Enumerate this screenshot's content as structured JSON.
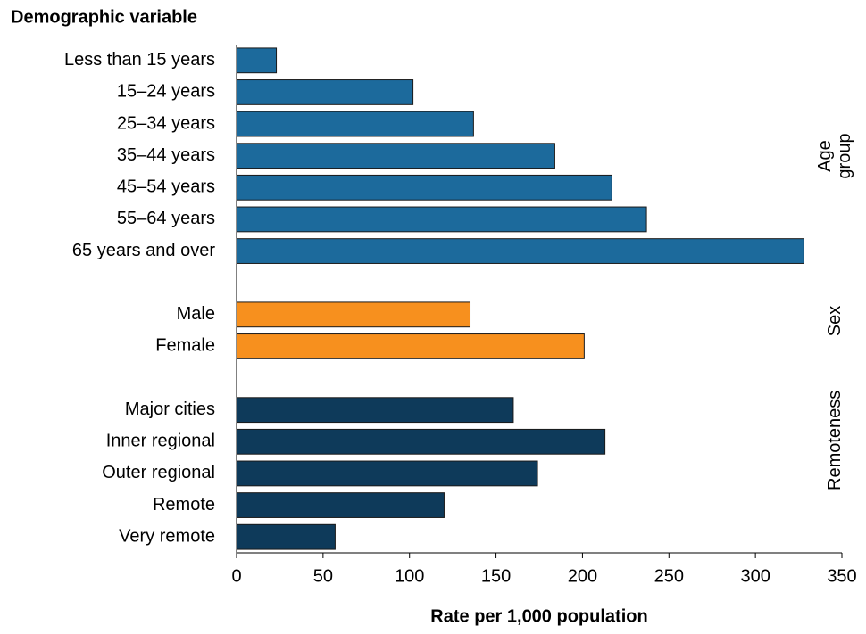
{
  "chart_data": {
    "type": "bar",
    "orientation": "horizontal",
    "title": "Demographic variable",
    "x_label": "Rate per 1,000 population",
    "xlim": [
      0,
      350
    ],
    "xticks": [
      0,
      50,
      100,
      150,
      200,
      250,
      300,
      350
    ],
    "groups": [
      {
        "name": "Age group",
        "color": "#1c6a9c",
        "categories": [
          "Less than 15 years",
          "15–24 years",
          "25–34 years",
          "35–44 years",
          "45–54 years",
          "55–64 years",
          "65 years and over"
        ],
        "values": [
          23,
          102,
          137,
          184,
          217,
          237,
          328
        ]
      },
      {
        "name": "Sex",
        "color": "#f7901e",
        "categories": [
          "Male",
          "Female"
        ],
        "values": [
          135,
          201
        ]
      },
      {
        "name": "Remoteness",
        "color": "#0e3a5a",
        "categories": [
          "Major cities",
          "Inner regional",
          "Outer regional",
          "Remote",
          "Very remote"
        ],
        "values": [
          160,
          213,
          174,
          120,
          57
        ]
      }
    ]
  }
}
